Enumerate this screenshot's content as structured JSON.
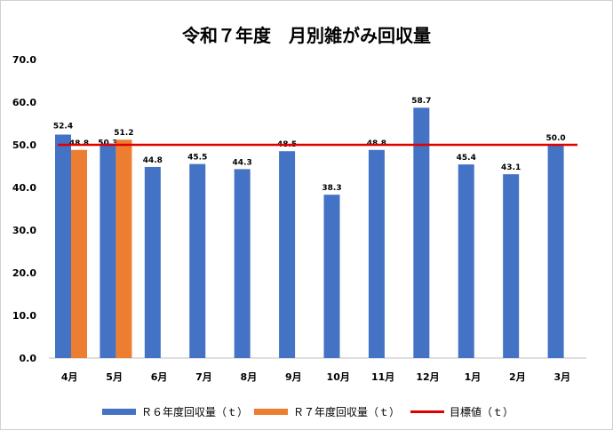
{
  "chart_data": {
    "type": "bar",
    "title": "令和７年度　月別雑がみ回収量",
    "categories": [
      "4月",
      "5月",
      "6月",
      "7月",
      "8月",
      "9月",
      "10月",
      "11月",
      "12月",
      "1月",
      "2月",
      "3月"
    ],
    "series": [
      {
        "name": "Ｒ６年度回収量（ｔ）",
        "color": "#4472C4",
        "values": [
          52.4,
          50.3,
          44.8,
          45.5,
          44.3,
          48.5,
          38.3,
          48.8,
          58.7,
          45.4,
          43.1,
          50.0
        ]
      },
      {
        "name": "Ｒ７年度回収量（ｔ）",
        "color": "#ED7D31",
        "values": [
          48.8,
          51.2,
          null,
          null,
          null,
          null,
          null,
          null,
          null,
          null,
          null,
          null
        ]
      }
    ],
    "target": {
      "name": "目標値（ｔ）",
      "value": 50,
      "color": "#E00000"
    },
    "yticks": [
      "0.0",
      "10.0",
      "20.0",
      "30.0",
      "40.0",
      "50.0",
      "60.0",
      "70.0"
    ],
    "ylim": [
      0,
      70
    ],
    "legend_position": "bottom"
  }
}
